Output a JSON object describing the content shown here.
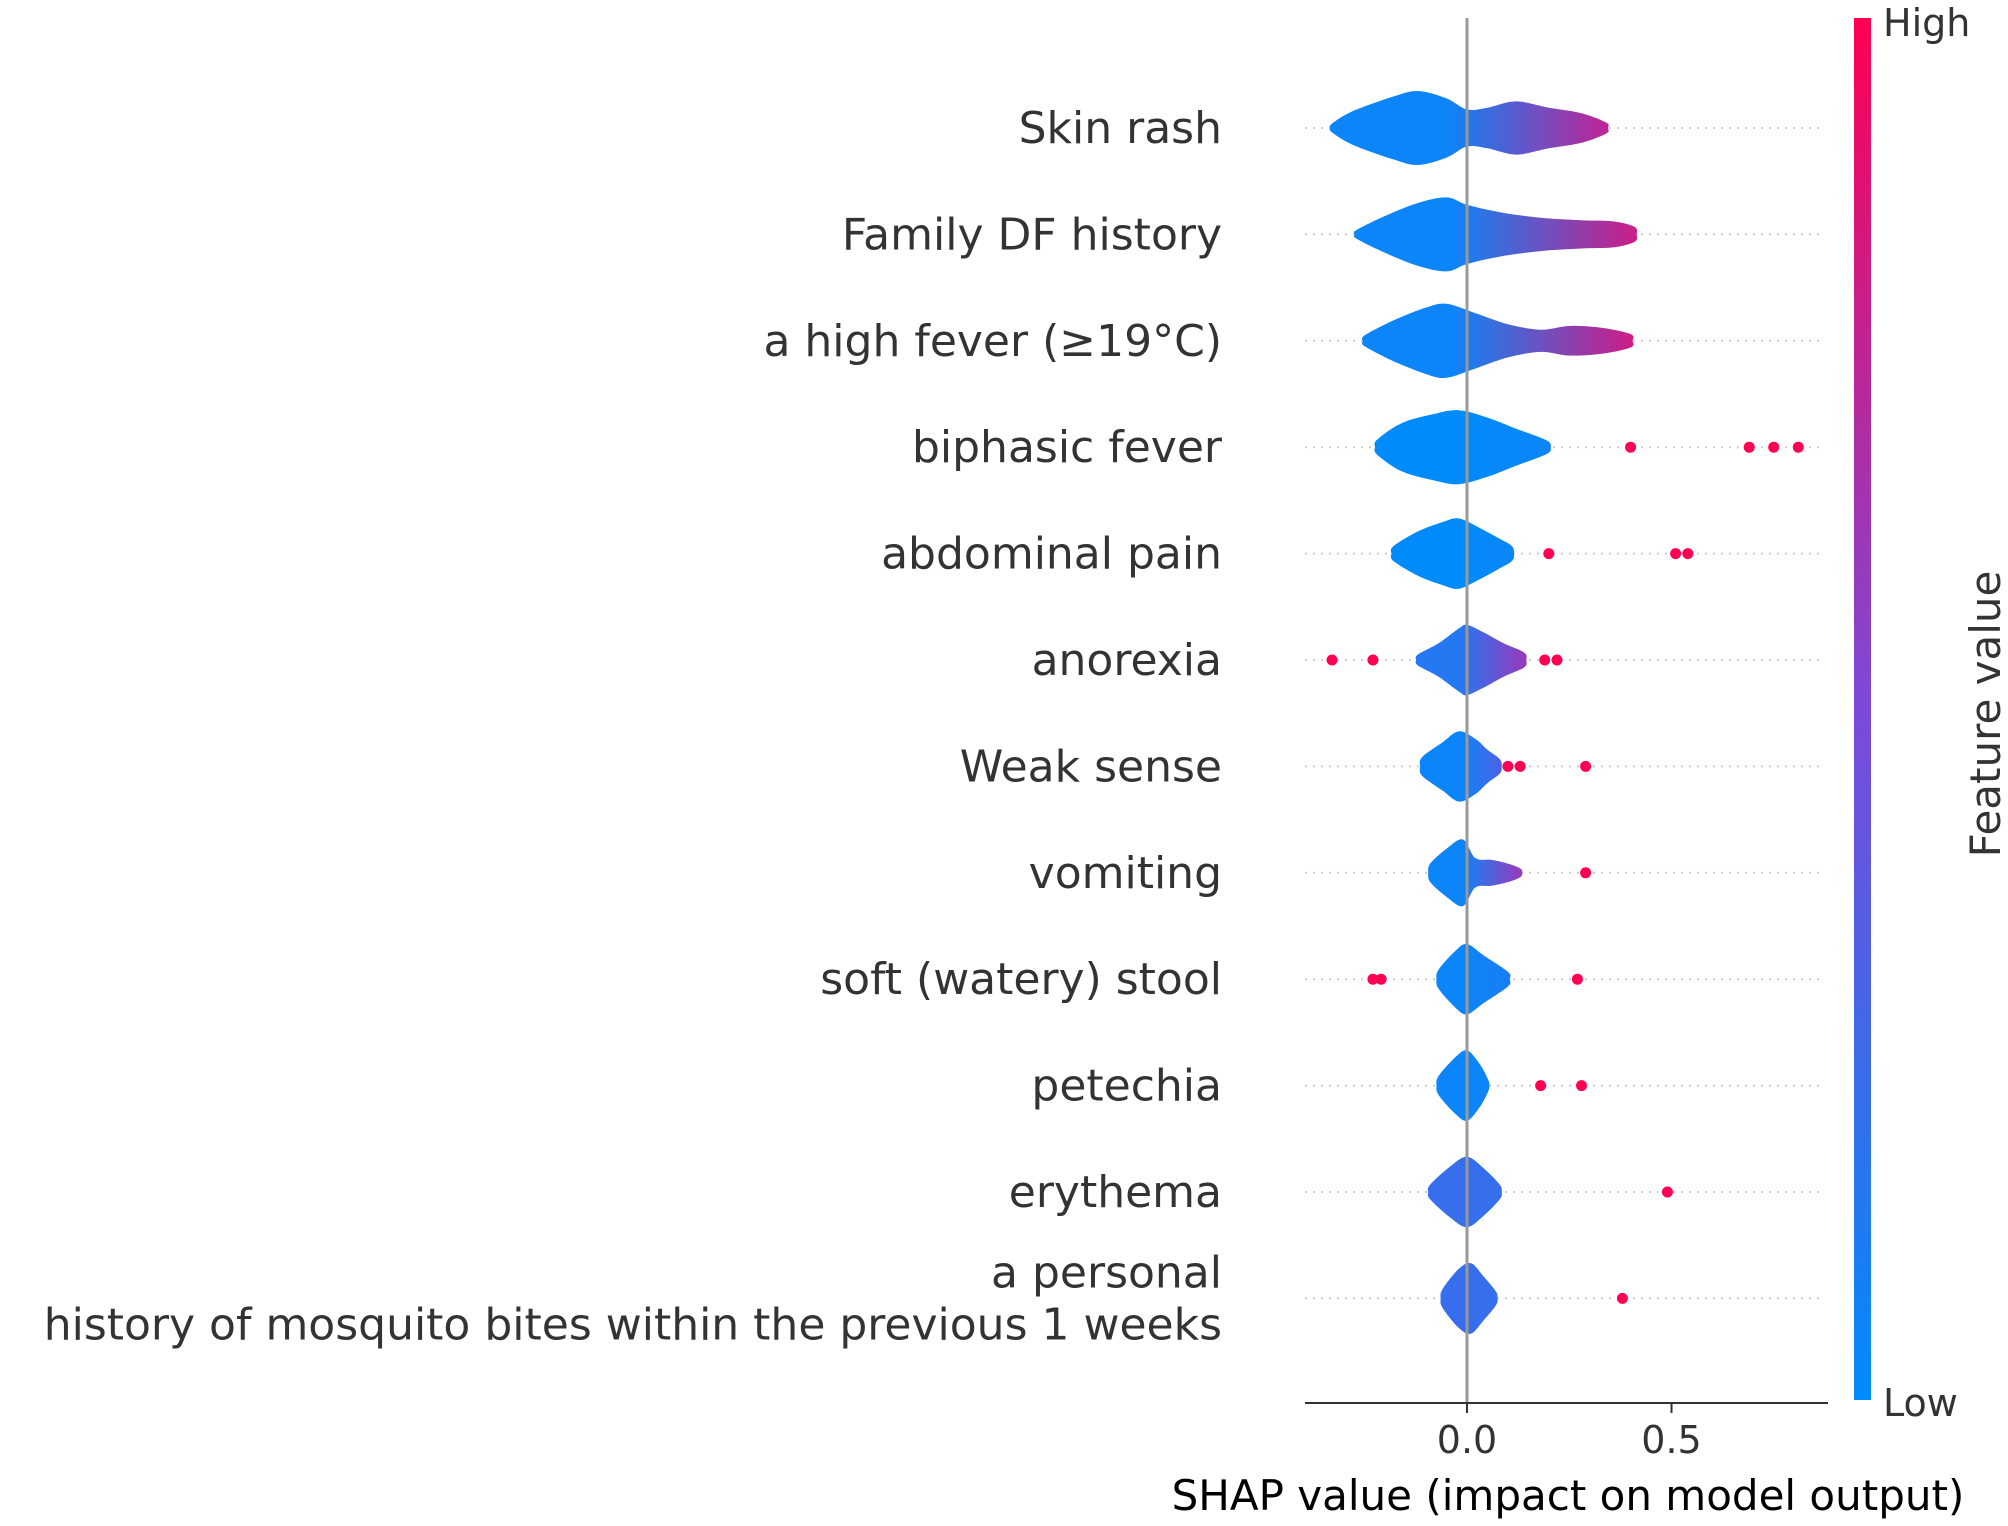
{
  "chart_data": {
    "type": "violin",
    "xlabel": "SHAP value (impact on model output)",
    "xlim": [
      -0.4,
      0.88
    ],
    "xticks": [
      0.0,
      0.5
    ],
    "xtick_labels": [
      "0.0",
      "0.5"
    ],
    "colorbar": {
      "title": "Feature value",
      "high": "High",
      "low": "Low",
      "low_color": "#008bfb",
      "mid_color": "#7c4ad9",
      "high_color": "#ff0052"
    },
    "features": [
      {
        "label_lines": [
          "Skin rash"
        ],
        "range": [
          -0.33,
          0.34
        ],
        "color_low": 0.05,
        "color_high": 0.75,
        "profile": [
          [
            -0.33,
            0.12
          ],
          [
            -0.28,
            0.45
          ],
          [
            -0.18,
            0.85
          ],
          [
            -0.12,
            1.0
          ],
          [
            -0.05,
            0.8
          ],
          [
            0.0,
            0.5
          ],
          [
            0.05,
            0.55
          ],
          [
            0.12,
            0.72
          ],
          [
            0.2,
            0.55
          ],
          [
            0.28,
            0.4
          ],
          [
            0.34,
            0.15
          ]
        ],
        "outliers": []
      },
      {
        "label_lines": [
          "Family DF history"
        ],
        "range": [
          -0.27,
          0.41
        ],
        "color_low": 0.05,
        "color_high": 0.8,
        "profile": [
          [
            -0.27,
            0.12
          ],
          [
            -0.2,
            0.5
          ],
          [
            -0.12,
            0.85
          ],
          [
            -0.05,
            1.0
          ],
          [
            0.0,
            0.8
          ],
          [
            0.08,
            0.6
          ],
          [
            0.18,
            0.45
          ],
          [
            0.28,
            0.38
          ],
          [
            0.36,
            0.35
          ],
          [
            0.41,
            0.2
          ]
        ],
        "outliers": []
      },
      {
        "label_lines": [
          "a high fever (≥19°C)"
        ],
        "range": [
          -0.25,
          0.4
        ],
        "color_low": 0.05,
        "color_high": 0.8,
        "profile": [
          [
            -0.25,
            0.15
          ],
          [
            -0.18,
            0.55
          ],
          [
            -0.1,
            0.9
          ],
          [
            -0.05,
            1.0
          ],
          [
            0.02,
            0.75
          ],
          [
            0.1,
            0.45
          ],
          [
            0.18,
            0.3
          ],
          [
            0.25,
            0.4
          ],
          [
            0.33,
            0.35
          ],
          [
            0.4,
            0.18
          ]
        ],
        "outliers": []
      },
      {
        "label_lines": [
          "biphasic fever"
        ],
        "range": [
          -0.22,
          0.2
        ],
        "color_low": 0.0,
        "color_high": 0.05,
        "profile": [
          [
            -0.22,
            0.2
          ],
          [
            -0.16,
            0.65
          ],
          [
            -0.08,
            0.9
          ],
          [
            -0.02,
            1.0
          ],
          [
            0.05,
            0.8
          ],
          [
            0.12,
            0.5
          ],
          [
            0.17,
            0.3
          ],
          [
            0.2,
            0.15
          ]
        ],
        "outliers": [
          0.4,
          0.69,
          0.75,
          0.81
        ]
      },
      {
        "label_lines": [
          "abdominal pain"
        ],
        "range": [
          -0.18,
          0.11
        ],
        "color_low": 0.0,
        "color_high": 0.05,
        "profile": [
          [
            -0.18,
            0.2
          ],
          [
            -0.12,
            0.6
          ],
          [
            -0.06,
            0.85
          ],
          [
            -0.02,
            0.95
          ],
          [
            0.03,
            0.7
          ],
          [
            0.08,
            0.4
          ],
          [
            0.11,
            0.2
          ]
        ],
        "outliers": [
          0.2,
          0.51,
          0.54
        ]
      },
      {
        "label_lines": [
          "anorexia"
        ],
        "range": [
          -0.12,
          0.14
        ],
        "color_low": 0.15,
        "color_high": 0.6,
        "profile": [
          [
            -0.12,
            0.15
          ],
          [
            -0.07,
            0.45
          ],
          [
            -0.02,
            0.85
          ],
          [
            0.0,
            0.95
          ],
          [
            0.04,
            0.75
          ],
          [
            0.09,
            0.45
          ],
          [
            0.14,
            0.2
          ]
        ],
        "outliers": [
          -0.33,
          -0.23,
          0.19,
          0.22
        ]
      },
      {
        "label_lines": [
          "Weak sense"
        ],
        "range": [
          -0.11,
          0.08
        ],
        "color_low": 0.05,
        "color_high": 0.3,
        "profile": [
          [
            -0.11,
            0.25
          ],
          [
            -0.06,
            0.65
          ],
          [
            -0.02,
            0.95
          ],
          [
            0.02,
            0.75
          ],
          [
            0.05,
            0.45
          ],
          [
            0.08,
            0.2
          ]
        ],
        "outliers": [
          0.1,
          0.13,
          0.29
        ]
      },
      {
        "label_lines": [
          "vomiting"
        ],
        "range": [
          -0.09,
          0.13
        ],
        "color_low": 0.05,
        "color_high": 0.6,
        "profile": [
          [
            -0.09,
            0.25
          ],
          [
            -0.05,
            0.65
          ],
          [
            -0.01,
            0.9
          ],
          [
            0.02,
            0.4
          ],
          [
            0.06,
            0.35
          ],
          [
            0.1,
            0.25
          ],
          [
            0.13,
            0.12
          ]
        ],
        "outliers": [
          0.29
        ]
      },
      {
        "label_lines": [
          "soft (watery) stool"
        ],
        "range": [
          -0.07,
          0.1
        ],
        "color_low": 0.05,
        "color_high": 0.1,
        "profile": [
          [
            -0.07,
            0.25
          ],
          [
            -0.03,
            0.75
          ],
          [
            0.0,
            0.95
          ],
          [
            0.04,
            0.65
          ],
          [
            0.1,
            0.2
          ]
        ],
        "outliers": [
          -0.23,
          -0.21,
          0.27
        ]
      },
      {
        "label_lines": [
          "petechia"
        ],
        "range": [
          -0.07,
          0.05
        ],
        "color_low": 0.05,
        "color_high": 0.05,
        "profile": [
          [
            -0.07,
            0.25
          ],
          [
            -0.03,
            0.75
          ],
          [
            0.0,
            0.95
          ],
          [
            0.03,
            0.6
          ],
          [
            0.05,
            0.2
          ]
        ],
        "outliers": [
          0.18,
          0.28
        ]
      },
      {
        "label_lines": [
          "erythema"
        ],
        "range": [
          -0.09,
          0.08
        ],
        "color_low": 0.22,
        "color_high": 0.22,
        "profile": [
          [
            -0.09,
            0.2
          ],
          [
            -0.04,
            0.7
          ],
          [
            0.0,
            0.95
          ],
          [
            0.04,
            0.65
          ],
          [
            0.08,
            0.2
          ]
        ],
        "outliers": [
          0.49
        ]
      },
      {
        "label_lines": [
          "a personal",
          "history of mosquito bites within the previous 1 weeks"
        ],
        "range": [
          -0.06,
          0.07
        ],
        "color_low": 0.22,
        "color_high": 0.22,
        "profile": [
          [
            -0.06,
            0.25
          ],
          [
            -0.02,
            0.8
          ],
          [
            0.01,
            0.95
          ],
          [
            0.04,
            0.6
          ],
          [
            0.07,
            0.2
          ]
        ],
        "outliers": [
          0.38
        ]
      }
    ]
  }
}
